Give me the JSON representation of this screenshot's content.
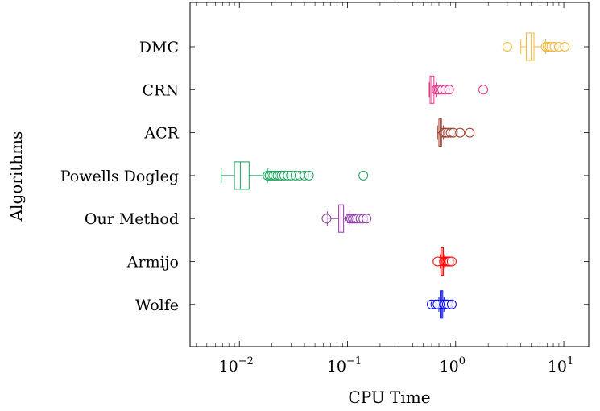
{
  "chart_data": {
    "type": "boxplot",
    "xlabel": "CPU Time",
    "ylabel": "Algorithms",
    "x_scale": "log",
    "xlim": [
      0.0035,
      17
    ],
    "x_ticks": [
      {
        "value": 0.01,
        "base": "10",
        "exp": "−2"
      },
      {
        "value": 0.1,
        "base": "10",
        "exp": "−1"
      },
      {
        "value": 1,
        "base": "10",
        "exp": "0"
      },
      {
        "value": 10,
        "base": "10",
        "exp": "1"
      }
    ],
    "grid": false,
    "series": [
      {
        "name": "DMC",
        "color": "#f6b73c",
        "whisker_low": 4.0,
        "q1": 4.5,
        "median": 5.0,
        "q3": 5.3,
        "whisker_high": 6.8,
        "outliers": [
          3.0,
          6.8,
          7.1,
          7.4,
          7.7,
          8.2,
          9.0,
          10.2
        ]
      },
      {
        "name": "CRN",
        "color": "#e0358b",
        "whisker_low": 0.57,
        "q1": 0.58,
        "median": 0.6,
        "q3": 0.63,
        "whisker_high": 0.66,
        "outliers": [
          0.66,
          0.68,
          0.7,
          0.72,
          0.75,
          0.8,
          0.87,
          1.8
        ]
      },
      {
        "name": "ACR",
        "color": "#a03a2c",
        "whisker_low": 0.68,
        "q1": 0.7,
        "median": 0.72,
        "q3": 0.74,
        "whisker_high": 0.77,
        "outliers": [
          0.78,
          0.81,
          0.85,
          0.9,
          0.95,
          1.1,
          1.35
        ]
      },
      {
        "name": "Powells Dogleg",
        "color": "#16a05a",
        "whisker_low": 0.0068,
        "q1": 0.009,
        "median": 0.0102,
        "q3": 0.0123,
        "whisker_high": 0.0182,
        "outliers": [
          0.0182,
          0.019,
          0.0198,
          0.0206,
          0.0215,
          0.0225,
          0.0235,
          0.0245,
          0.026,
          0.028,
          0.03,
          0.033,
          0.036,
          0.04,
          0.044,
          0.14
        ]
      },
      {
        "name": "Our Method",
        "color": "#8b3ca4",
        "whisker_low": 0.065,
        "q1": 0.083,
        "median": 0.087,
        "q3": 0.092,
        "whisker_high": 0.105,
        "outliers": [
          0.064,
          0.104,
          0.108,
          0.112,
          0.116,
          0.12,
          0.125,
          0.132,
          0.14,
          0.15
        ]
      },
      {
        "name": "Armijo",
        "color": "#ff0000",
        "whisker_low": 0.72,
        "q1": 0.73,
        "median": 0.75,
        "q3": 0.77,
        "whisker_high": 0.79,
        "outliers": [
          0.68,
          0.78,
          0.8,
          0.82,
          0.84,
          0.86,
          0.88,
          0.92
        ]
      },
      {
        "name": "Wolfe",
        "color": "#0000ff",
        "whisker_low": 0.7,
        "q1": 0.72,
        "median": 0.74,
        "q3": 0.76,
        "whisker_high": 0.78,
        "outliers": [
          0.6,
          0.65,
          0.68,
          0.78,
          0.8,
          0.83,
          0.86,
          0.92
        ]
      }
    ]
  }
}
